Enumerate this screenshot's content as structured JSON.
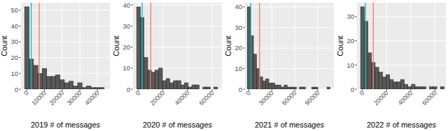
{
  "chart_data": [
    {
      "type": "histogram",
      "x_label": "2019 # of messages",
      "y_label": "Count",
      "bins": [
        -1250,
        1250,
        3750,
        6250,
        8750,
        11250,
        13750,
        16250,
        18750,
        21250,
        23750,
        26250,
        28750,
        31250,
        33750,
        36250,
        38750,
        41250,
        43750
      ],
      "counts": [
        52,
        19,
        15,
        10,
        13,
        8,
        8,
        9,
        6,
        4,
        5,
        2,
        4,
        1,
        2,
        1,
        1,
        1
      ],
      "color": "#595959",
      "xlim": [
        -3300,
        47000
      ],
      "ylim": [
        0,
        54.6
      ],
      "xticks": [
        0,
        10000,
        20000,
        30000,
        40000
      ],
      "yticks": [
        0,
        10,
        20,
        30,
        40,
        50
      ],
      "grid": true,
      "reference_lines": [
        {
          "value": 2500,
          "color": "#00bfc4"
        },
        {
          "value": 7000,
          "color": "#f8766d"
        }
      ]
    },
    {
      "type": "histogram",
      "x_label": "2020 # of messages",
      "y_label": "Count",
      "bins": [
        -1500,
        1500,
        4500,
        7500,
        10500,
        13500,
        16500,
        19500,
        22500,
        25500,
        28500,
        31500,
        34500,
        37500,
        40500,
        43500,
        46500,
        49500,
        52500,
        55500,
        58500,
        61500,
        64500
      ],
      "counts": [
        39,
        34,
        15,
        9,
        8,
        9,
        10,
        4,
        5,
        3,
        4,
        4,
        2,
        3,
        1,
        2,
        2,
        0,
        1,
        1,
        0,
        1
      ],
      "color": "#595959",
      "xlim": [
        -4500,
        68000
      ],
      "ylim": [
        0,
        41
      ],
      "xticks": [
        0,
        20000,
        40000,
        60000
      ],
      "yticks": [
        0,
        10,
        20,
        30,
        40
      ],
      "grid": true,
      "reference_lines": [
        {
          "value": 3000,
          "color": "#00bfc4"
        },
        {
          "value": 10000,
          "color": "#f8766d"
        }
      ]
    },
    {
      "type": "histogram",
      "x_label": "2021 # of messages",
      "y_label": "Count",
      "bins": [
        -2000,
        2000,
        6000,
        10000,
        14000,
        18000,
        22000,
        26000,
        30000,
        34000,
        38000,
        42000,
        46000,
        50000,
        54000,
        58000,
        62000,
        66000,
        70000,
        74000,
        78000,
        82000,
        86000,
        90000,
        94000,
        98000,
        102000,
        106000
      ],
      "counts": [
        40,
        26,
        17,
        10,
        6,
        4,
        5,
        3,
        3,
        2,
        2,
        1,
        2,
        1,
        1,
        1,
        0,
        1,
        1,
        0,
        0,
        1,
        1,
        0,
        0,
        0,
        1
      ],
      "color": "#595959",
      "xlim": [
        -5000,
        111000
      ],
      "ylim": [
        0,
        42
      ],
      "xticks": [
        0,
        30000,
        60000,
        90000
      ],
      "yticks": [
        0,
        10,
        20,
        30,
        40
      ],
      "grid": true,
      "reference_lines": [
        {
          "value": 2500,
          "color": "#00bfc4"
        },
        {
          "value": 14000,
          "color": "#f8766d"
        }
      ]
    },
    {
      "type": "histogram",
      "x_label": "2022 # of messages",
      "y_label": "Count",
      "bins": [
        -1500,
        1500,
        4500,
        7500,
        10500,
        13500,
        16500,
        19500,
        22500,
        25500,
        28500,
        31500,
        34500,
        37500,
        40500,
        43500,
        46500,
        49500,
        52500,
        55500,
        58500,
        61500,
        64500,
        67500
      ],
      "counts": [
        34,
        28,
        15,
        11,
        9,
        7,
        5,
        6,
        4,
        3,
        3,
        4,
        2,
        1,
        2,
        1,
        1,
        1,
        0,
        1,
        1,
        0,
        1
      ],
      "color": "#595959",
      "xlim": [
        -4500,
        69000
      ],
      "ylim": [
        0,
        35.7
      ],
      "xticks": [
        0,
        20000,
        40000,
        60000
      ],
      "yticks": [
        0,
        10,
        20,
        30
      ],
      "grid": true,
      "reference_lines": [
        {
          "value": 2500,
          "color": "#00bfc4"
        },
        {
          "value": 9000,
          "color": "#f8766d"
        }
      ]
    }
  ]
}
